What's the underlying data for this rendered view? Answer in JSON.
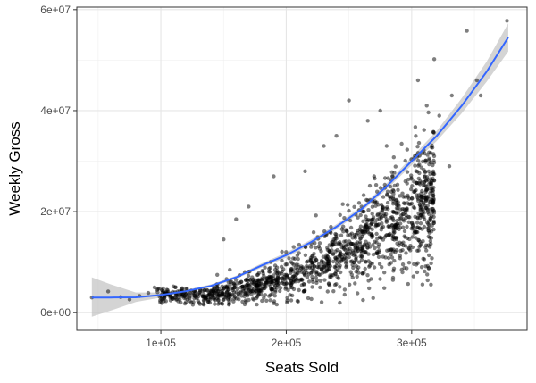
{
  "chart_data": {
    "type": "scatter",
    "title": "",
    "xlabel": "Seats Sold",
    "ylabel": "Weekly Gross",
    "xlim": [
      33000,
      392000
    ],
    "ylim": [
      -3500000,
      60500000
    ],
    "x_ticks": [
      {
        "value": 100000,
        "label": "1e+05"
      },
      {
        "value": 200000,
        "label": "2e+05"
      },
      {
        "value": 300000,
        "label": "3e+05"
      }
    ],
    "y_ticks": [
      {
        "value": 0,
        "label": "0e+00"
      },
      {
        "value": 20000000,
        "label": "2e+07"
      },
      {
        "value": 40000000,
        "label": "4e+07"
      },
      {
        "value": 60000000,
        "label": "6e+07"
      }
    ],
    "grid": true,
    "legend": "none",
    "point_color": "#000000",
    "point_opacity": 0.5,
    "smooth_line_color": "#3366ff",
    "ribbon_color": "#bdbdbd",
    "scatter_points": [
      [
        45000,
        3000000
      ],
      [
        58000,
        4200000
      ],
      [
        68000,
        3100000
      ],
      [
        75000,
        2600000
      ],
      [
        83000,
        3300000
      ],
      [
        90000,
        3900000
      ],
      [
        95000,
        5000000
      ],
      [
        102000,
        4200000
      ],
      [
        108000,
        3800000
      ],
      [
        110000,
        5200000
      ],
      [
        115000,
        4300000
      ],
      [
        120000,
        4700000
      ],
      [
        344000,
        55800000
      ],
      [
        376000,
        57800000
      ],
      [
        352000,
        46000000
      ],
      [
        332000,
        43000000
      ],
      [
        355000,
        43000000
      ],
      [
        318000,
        50200000
      ],
      [
        330000,
        29000000
      ],
      [
        322000,
        39000000
      ],
      [
        312000,
        41000000
      ],
      [
        310000,
        17000000
      ],
      [
        303000,
        16000000
      ],
      [
        308000,
        23000000
      ],
      [
        305000,
        46000000
      ],
      [
        250000,
        42000000
      ],
      [
        265000,
        38000000
      ],
      [
        275000,
        40000000
      ],
      [
        215000,
        28000000
      ],
      [
        190000,
        27000000
      ],
      [
        170000,
        21000000
      ],
      [
        160000,
        18500000
      ],
      [
        150000,
        14500000
      ],
      [
        155000,
        8500000
      ],
      [
        145000,
        7500000
      ],
      [
        230000,
        33000000
      ],
      [
        240000,
        35000000
      ],
      [
        225000,
        15000000
      ],
      [
        285000,
        20000000
      ],
      [
        295000,
        26000000
      ],
      [
        175000,
        5500000
      ],
      [
        185000,
        6000000
      ],
      [
        200000,
        7500000
      ],
      [
        210000,
        9000000
      ],
      [
        220000,
        10500000
      ],
      [
        235000,
        12000000
      ],
      [
        260000,
        21000000
      ],
      [
        280000,
        33000000
      ]
    ],
    "scatter_cloud": {
      "count": 1500,
      "x_range": [
        97000,
        318000
      ],
      "curve_a": 3200000,
      "curve_b": 470,
      "curve_x0": 110000
    },
    "smooth_line": {
      "x": [
        45000,
        60000,
        80000,
        100000,
        120000,
        140000,
        160000,
        180000,
        200000,
        220000,
        240000,
        260000,
        280000,
        300000,
        320000,
        340000,
        360000,
        377000
      ],
      "y": [
        3000000,
        3000000,
        3050000,
        3500000,
        4250000,
        5300000,
        7000000,
        9300000,
        11400000,
        14000000,
        17000000,
        20500000,
        25000000,
        30000000,
        35000000,
        41000000,
        47800000,
        54500000
      ]
    },
    "confidence_band": {
      "upper": [
        7000000,
        5600000,
        4000000,
        4000000,
        4500000,
        5600000,
        7300000,
        9700000,
        11900000,
        14500000,
        17500000,
        21000000,
        25600000,
        30800000,
        36000000,
        42500000,
        49800000,
        57300000
      ],
      "lower": [
        -800000,
        400000,
        2100000,
        3000000,
        4000000,
        5000000,
        6700000,
        8900000,
        10900000,
        13500000,
        16500000,
        20000000,
        24400000,
        29200000,
        34000000,
        39500000,
        45800000,
        51700000
      ]
    }
  }
}
